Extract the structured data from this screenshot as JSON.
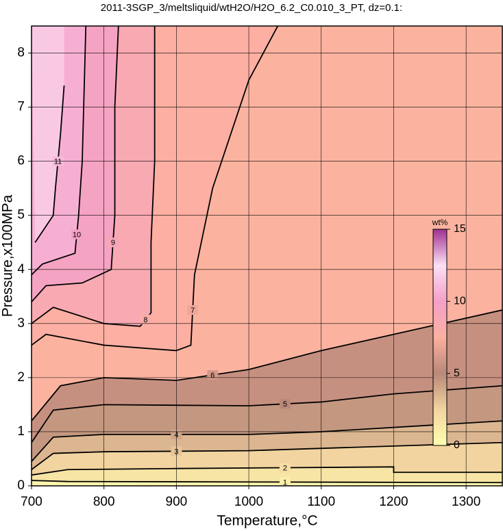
{
  "chart_data": {
    "type": "contour",
    "title": "2011-3SGP_3/meltsliquid/wtH2O/H2O_6.2_C0.010_3_PT, dz=0.1:",
    "x_label": "Temperature,°C",
    "y_label": "Pressure,x100MPa",
    "xlim": [
      700,
      1350
    ],
    "ylim": [
      0,
      8.5
    ],
    "xticks": [
      700,
      800,
      900,
      1000,
      1100,
      1200,
      1300
    ],
    "yticks": [
      0,
      1,
      2,
      3,
      4,
      5,
      6,
      7,
      8
    ],
    "grid": true,
    "line_color": "#000000",
    "background": "#fbb3a0",
    "colorbar": {
      "label": "wt%",
      "lim": [
        0,
        15
      ],
      "ticks": [
        0,
        5,
        10,
        15
      ],
      "colormap": [
        "#ffffb0",
        "#f2d4a0",
        "#b88878",
        "#fcb0a0",
        "#f4a0c8",
        "#fce0f4",
        "#a03090"
      ]
    },
    "series": [
      {
        "name": "6",
        "x": [
          700,
          740,
          800,
          900,
          1000,
          1100,
          1250,
          1350
        ],
        "y": [
          1.2,
          1.85,
          2.0,
          1.95,
          2.15,
          2.5,
          2.95,
          3.25
        ]
      },
      {
        "name": "5",
        "x": [
          700,
          730,
          800,
          1000,
          1100,
          1200,
          1350
        ],
        "y": [
          0.8,
          1.4,
          1.5,
          1.48,
          1.55,
          1.7,
          1.85
        ]
      },
      {
        "name": "4",
        "x": [
          700,
          730,
          800,
          1000,
          1100,
          1350
        ],
        "y": [
          0.45,
          0.9,
          0.95,
          0.95,
          1.0,
          1.2
        ]
      },
      {
        "name": "3",
        "x": [
          700,
          730,
          800,
          1000,
          1350
        ],
        "y": [
          0.3,
          0.6,
          0.63,
          0.65,
          0.8
        ]
      },
      {
        "name": "2",
        "x": [
          700,
          750,
          900,
          1200,
          1200,
          1350
        ],
        "y": [
          0.2,
          0.3,
          0.32,
          0.35,
          0.25,
          0.25
        ]
      },
      {
        "name": "1",
        "x": [
          700,
          750,
          1350
        ],
        "y": [
          0.1,
          0.08,
          0.06
        ]
      },
      {
        "name": "7",
        "x": [
          700,
          720,
          800,
          900,
          920,
          925,
          950,
          1000,
          1040
        ],
        "y": [
          2.6,
          2.8,
          2.6,
          2.5,
          2.6,
          3.9,
          5.5,
          7.5,
          8.5
        ]
      },
      {
        "name": "8",
        "x": [
          700,
          730,
          800,
          850,
          865,
          865,
          870,
          870
        ],
        "y": [
          3.0,
          3.3,
          3.0,
          2.95,
          3.2,
          4.5,
          6.0,
          8.5
        ]
      },
      {
        "name": "9",
        "x": [
          700,
          720,
          770,
          810,
          815,
          815,
          820
        ],
        "y": [
          3.4,
          3.7,
          3.75,
          4.0,
          5.0,
          7.0,
          8.5
        ]
      },
      {
        "name": "10",
        "x": [
          700,
          715,
          760,
          765,
          770,
          775
        ],
        "y": [
          3.9,
          4.1,
          4.3,
          5.0,
          6.0,
          8.5
        ]
      },
      {
        "name": "11",
        "x": [
          705,
          730,
          733,
          740,
          745
        ],
        "y": [
          4.5,
          5.0,
          5.5,
          6.5,
          7.4
        ]
      }
    ]
  }
}
